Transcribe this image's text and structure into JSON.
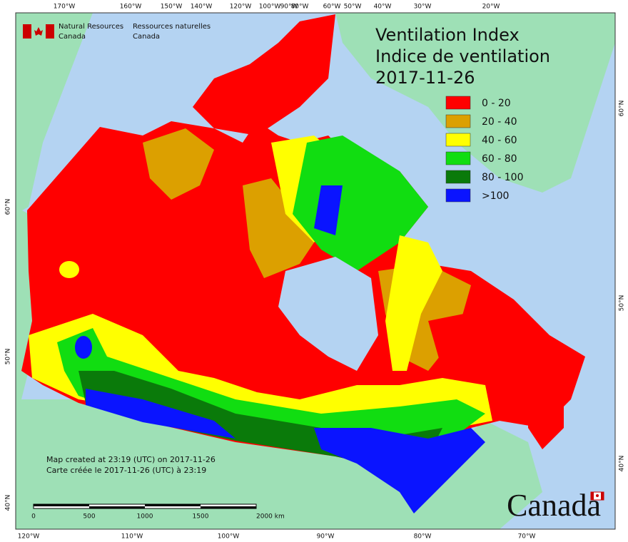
{
  "header": {
    "agency_en_1": "Natural Resources",
    "agency_en_2": "Canada",
    "agency_fr_1": "Ressources naturelles",
    "agency_fr_2": "Canada"
  },
  "title": {
    "line1": "Ventilation Index",
    "line2": "Indice de ventilation",
    "date": "2017-11-26"
  },
  "legend": [
    {
      "label": "0 - 20",
      "color": "#ff0000"
    },
    {
      "label": "20 - 40",
      "color": "#dca000"
    },
    {
      "label": "40 - 60",
      "color": "#ffff00"
    },
    {
      "label": "60 - 80",
      "color": "#11dd11"
    },
    {
      "label": "80 - 100",
      "color": "#0a7a0a"
    },
    {
      "label": ">100",
      "color": "#0a14ff"
    }
  ],
  "graticule": {
    "top": [
      "170°W",
      "160°W",
      "150°W",
      "140°W",
      "120°W",
      "100°W",
      "90°W",
      "80°W",
      "60°W",
      "50°W",
      "40°W",
      "30°W",
      "20°W"
    ],
    "right": [
      "60°N",
      "50°N",
      "40°N"
    ],
    "left": [
      "60°N",
      "50°N",
      "40°N"
    ],
    "bottom": [
      "120°W",
      "110°W",
      "100°W",
      "90°W",
      "80°W",
      "70°W"
    ]
  },
  "credits": {
    "line_en": "Map created at 23:19 (UTC) on 2017-11-26",
    "line_fr": "Carte créée le 2017-11-26 (UTC) à 23:19"
  },
  "scale_bar": [
    "0",
    "500",
    "1000",
    "1500",
    "2000 km"
  ],
  "wordmark": "Canada"
}
